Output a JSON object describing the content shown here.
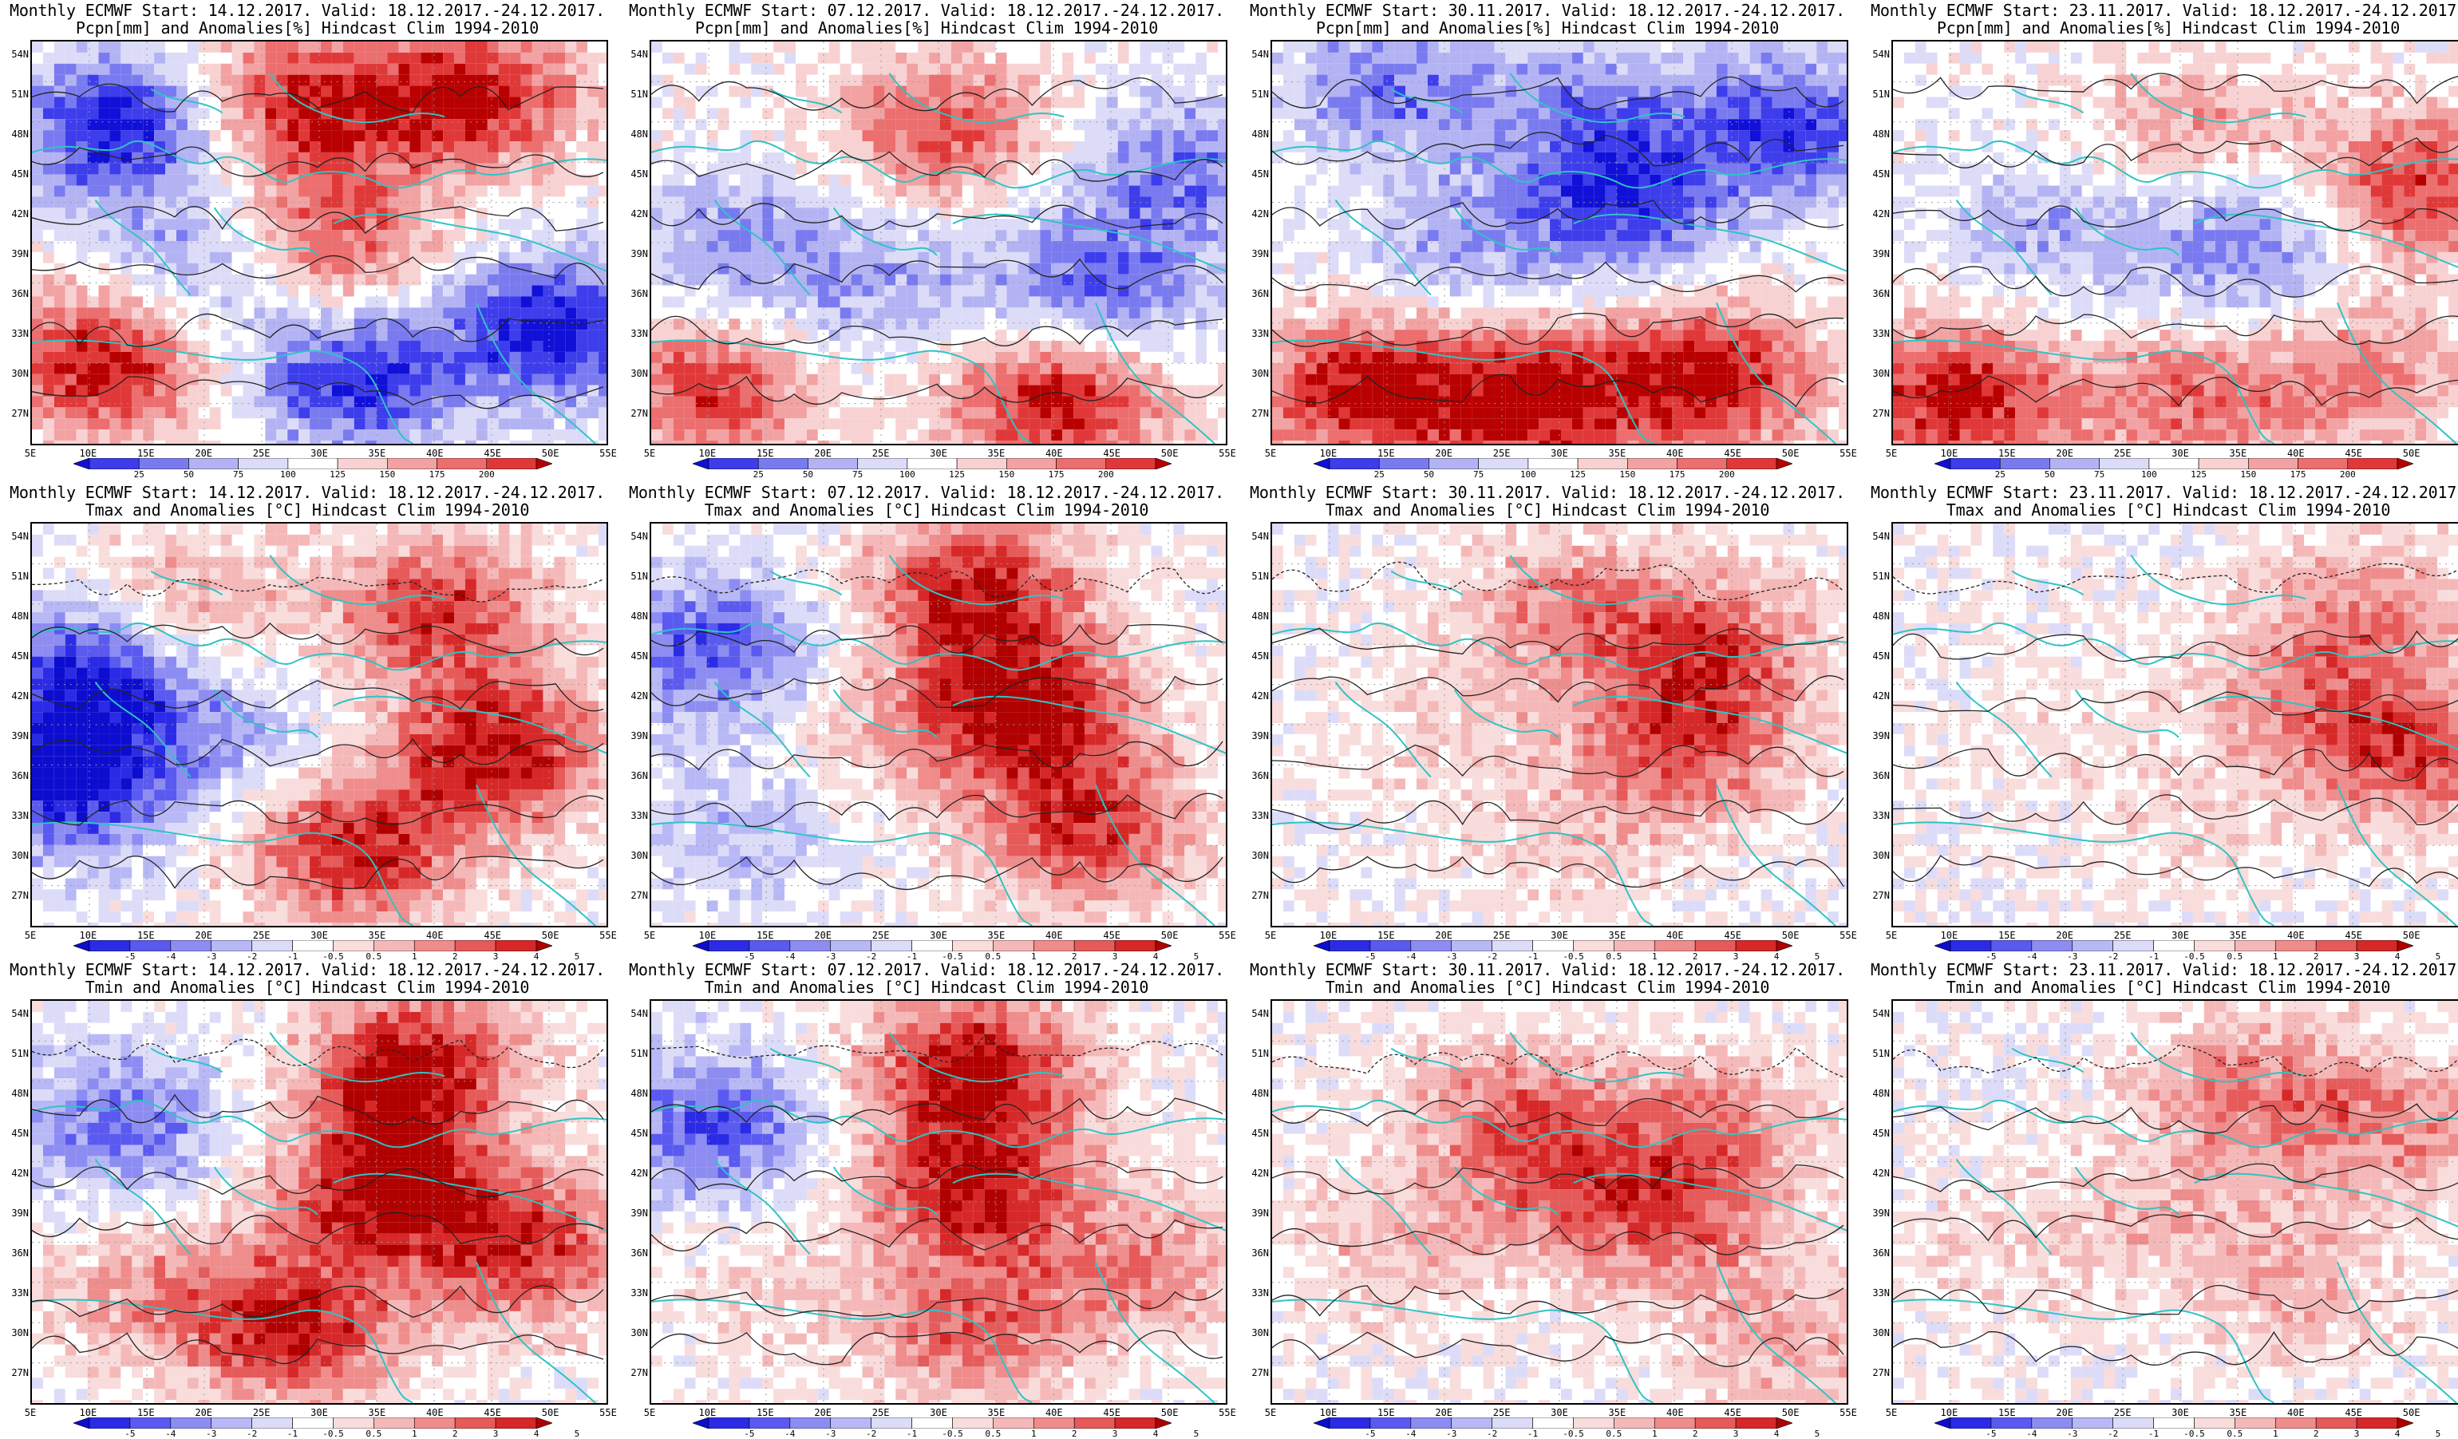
{
  "lat_labels": [
    "54N",
    "51N",
    "48N",
    "45N",
    "42N",
    "39N",
    "36N",
    "33N",
    "30N",
    "27N"
  ],
  "lon_labels": [
    "5E",
    "10E",
    "15E",
    "20E",
    "25E",
    "30E",
    "35E",
    "40E",
    "45E",
    "50E",
    "55E"
  ],
  "colorbars": {
    "pcpn": {
      "labels": [
        "25",
        "50",
        "75",
        "100",
        "125",
        "150",
        "175",
        "200"
      ],
      "colors": [
        "#1010d8",
        "#3d3dec",
        "#7a7af0",
        "#b3b3f4",
        "#dcdcf8",
        "#ffffff",
        "#f8d2d2",
        "#f2a2a2",
        "#ec6e6e",
        "#e03838",
        "#b80000"
      ]
    },
    "temp": {
      "labels": [
        "-5",
        "-4",
        "-3",
        "-2",
        "-1",
        "-0.5",
        "0.5",
        "1",
        "2",
        "3",
        "4",
        "5"
      ],
      "colors": [
        "#0d0dd0",
        "#2b2be6",
        "#5a5af0",
        "#8c8cf2",
        "#b8b8f6",
        "#dcdcf9",
        "#ffffff",
        "#f9dcdc",
        "#f5b8b8",
        "#ef8c8c",
        "#e65a5a",
        "#d62828",
        "#b00000"
      ]
    }
  },
  "panels": [
    {
      "title1": "Monthly ECMWF Start: 14.12.2017. Valid: 18.12.2017.-24.12.2017.",
      "title2": "Pcpn[mm] and Anomalies[%] Hindcast Clim 1994-2010",
      "cbar": "pcpn"
    },
    {
      "title1": "Monthly ECMWF Start: 07.12.2017. Valid: 18.12.2017.-24.12.2017.",
      "title2": "Pcpn[mm] and Anomalies[%] Hindcast Clim 1994-2010",
      "cbar": "pcpn"
    },
    {
      "title1": "Monthly ECMWF Start: 30.11.2017. Valid: 18.12.2017.-24.12.2017.",
      "title2": "Pcpn[mm] and Anomalies[%] Hindcast Clim 1994-2010",
      "cbar": "pcpn"
    },
    {
      "title1": "Monthly ECMWF Start: 23.11.2017. Valid: 18.12.2017.-24.12.2017.",
      "title2": "Pcpn[mm] and Anomalies[%] Hindcast Clim 1994-2010",
      "cbar": "pcpn"
    },
    {
      "title1": "Monthly ECMWF Start: 14.12.2017. Valid: 18.12.2017.-24.12.2017.",
      "title2": "Tmax and Anomalies [°C] Hindcast Clim 1994-2010",
      "cbar": "temp"
    },
    {
      "title1": "Monthly ECMWF Start: 07.12.2017. Valid: 18.12.2017.-24.12.2017.",
      "title2": "Tmax and Anomalies [°C] Hindcast Clim 1994-2010",
      "cbar": "temp"
    },
    {
      "title1": "Monthly ECMWF Start: 30.11.2017. Valid: 18.12.2017.-24.12.2017.",
      "title2": "Tmax and Anomalies [°C] Hindcast Clim 1994-2010",
      "cbar": "temp"
    },
    {
      "title1": "Monthly ECMWF Start: 23.11.2017. Valid: 18.12.2017.-24.12.2017.",
      "title2": "Tmax and Anomalies [°C] Hindcast Clim 1994-2010",
      "cbar": "temp"
    },
    {
      "title1": "Monthly ECMWF Start: 14.12.2017. Valid: 18.12.2017.-24.12.2017.",
      "title2": "Tmin and Anomalies [°C] Hindcast Clim 1994-2010",
      "cbar": "temp"
    },
    {
      "title1": "Monthly ECMWF Start: 07.12.2017. Valid: 18.12.2017.-24.12.2017.",
      "title2": "Tmin and Anomalies [°C] Hindcast Clim 1994-2010",
      "cbar": "temp"
    },
    {
      "title1": "Monthly ECMWF Start: 30.11.2017. Valid: 18.12.2017.-24.12.2017.",
      "title2": "Tmin and Anomalies [°C] Hindcast Clim 1994-2010",
      "cbar": "temp"
    },
    {
      "title1": "Monthly ECMWF Start: 23.11.2017. Valid: 18.12.2017.-24.12.2017.",
      "title2": "Tmin and Anomalies [°C] Hindcast Clim 1994-2010",
      "cbar": "temp"
    }
  ]
}
